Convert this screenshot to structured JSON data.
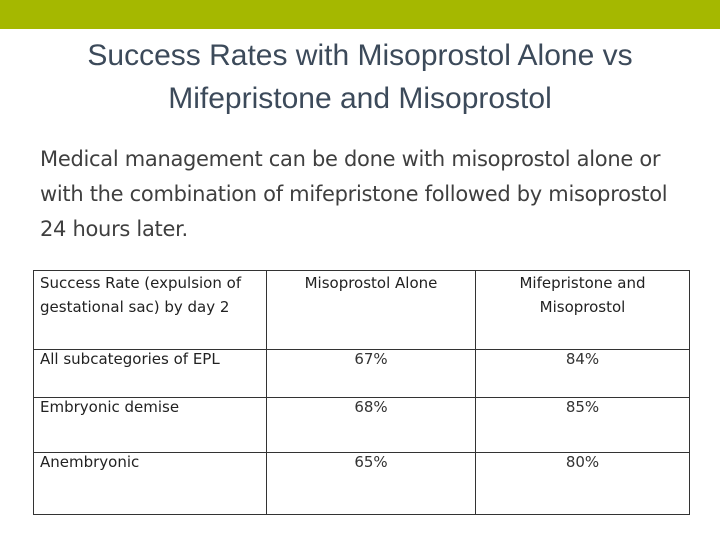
{
  "colors": {
    "top_bar": "#a5b800",
    "title": "#3c4a5a",
    "body_text": "#3f3f3f"
  },
  "slide": {
    "title": "Success Rates with Misoprostol Alone vs Mifepristone and Misoprostol",
    "intro": "Medical management can be done with misoprostol alone or with the combination of mifepristone followed by misoprostol 24 hours later."
  },
  "table": {
    "headers": [
      "Success Rate (expulsion of gestational sac) by day 2",
      "Misoprostol Alone",
      "Mifepristone and Misoprostol"
    ],
    "rows": [
      {
        "label": "All subcategories of EPL",
        "misoprostol": "67%",
        "combination": "84%"
      },
      {
        "label": "Embryonic demise",
        "misoprostol": "68%",
        "combination": "85%"
      },
      {
        "label": "Anembryonic",
        "misoprostol": "65%",
        "combination": "80%"
      }
    ]
  }
}
